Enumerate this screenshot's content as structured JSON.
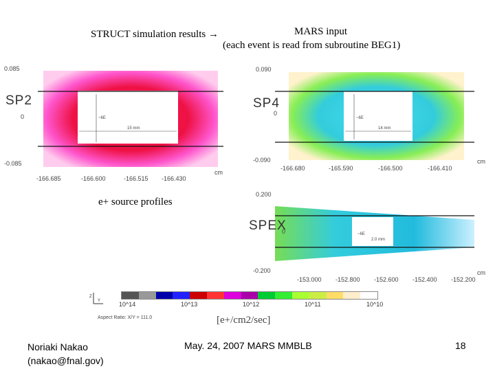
{
  "slide": {
    "title_left": "STRUCT simulation results →",
    "title_right": "MARS input",
    "subtitle_right": "(each event is read from subroutine BEG1)",
    "source_caption": "e+ source profiles",
    "footer_author_line1": "Noriaki Nakao",
    "footer_author_line2": "(nakao@fnal.gov)",
    "footer_date": "May. 24, 2007 MARS MMBLB",
    "footer_page": "18"
  },
  "chart_data": [
    {
      "type": "heatmap",
      "name": "SP2",
      "ylabel_top": "0.085",
      "ylabel_mid": "0",
      "ylabel_bottom": "-0.085",
      "xticks": [
        "-166.685",
        "-166.600",
        "-166.515",
        "-166.430"
      ],
      "xunit": "cm",
      "annot_height": "~6E",
      "annot_width": "15 mm",
      "palette": "magenta-red"
    },
    {
      "type": "heatmap",
      "name": "SP4",
      "ylabel_top": "0.090",
      "ylabel_mid": "0",
      "ylabel_bottom": "-0.090",
      "xticks": [
        "-166.680",
        "-165.590",
        "-166.500",
        "-166.410"
      ],
      "xunit": "cm",
      "annot_height": "~6E",
      "annot_width": "14 mm",
      "palette": "cyan-green"
    },
    {
      "type": "heatmap",
      "name": "SPEX",
      "ylabel_top": "0.200",
      "ylabel_mid": "0",
      "ylabel_bottom": "-0.200",
      "xticks": [
        "-153.000",
        "-152.800",
        "-152.600",
        "-152.400",
        "-152.200"
      ],
      "xunit": "cm",
      "annot_height": "~6E",
      "annot_width": "2.0 mm",
      "palette": "cyan-green"
    }
  ],
  "colorbar": {
    "unit": "[e+/cm2/sec]",
    "aspect_text": "Aspect Ratio: X/Y = 111.0",
    "ticks": [
      "10^14",
      "10^13",
      "10^12",
      "10^11",
      "10^10"
    ],
    "colors": [
      "#555555",
      "#999999",
      "#0000aa",
      "#2222ff",
      "#cc0000",
      "#ff3333",
      "#dd00dd",
      "#aa00aa",
      "#00cc33",
      "#33ee33",
      "#aaff33",
      "#ccee44",
      "#ffdd66",
      "#ffeecc",
      "#ffffff"
    ]
  }
}
